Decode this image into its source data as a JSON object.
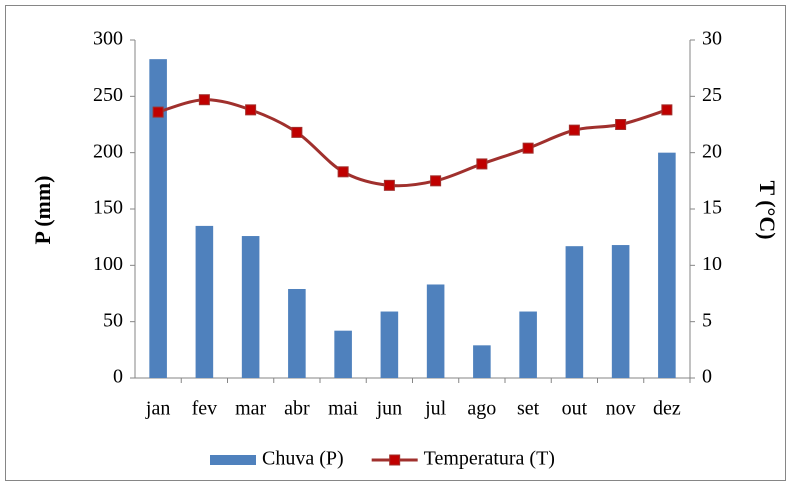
{
  "chart_data": {
    "type": "combo",
    "categories": [
      "jan",
      "fev",
      "mar",
      "abr",
      "mai",
      "jun",
      "jul",
      "ago",
      "set",
      "out",
      "nov",
      "dez"
    ],
    "series": [
      {
        "name": "Chuva (P)",
        "type": "bar",
        "color": "#4f81bd",
        "values": [
          283,
          135,
          126,
          79,
          42,
          59,
          83,
          29,
          59,
          117,
          118,
          200
        ]
      },
      {
        "name": "Temperatura (T)",
        "type": "line",
        "axis": "y2",
        "color": "#a0302d",
        "marker_color": "#c00000",
        "values": [
          23.6,
          24.7,
          23.8,
          21.8,
          18.3,
          17.1,
          17.5,
          19.0,
          20.4,
          22.0,
          22.5,
          23.8
        ]
      }
    ],
    "ylabel": "P (mm)",
    "y2label": "T (°C)",
    "ylim": [
      0,
      300
    ],
    "yticks": [
      0,
      50,
      100,
      150,
      200,
      250,
      300
    ],
    "y2lim": [
      0,
      30
    ],
    "y2ticks": [
      0,
      5,
      10,
      15,
      20,
      25,
      30
    ],
    "legend": "bottom"
  }
}
